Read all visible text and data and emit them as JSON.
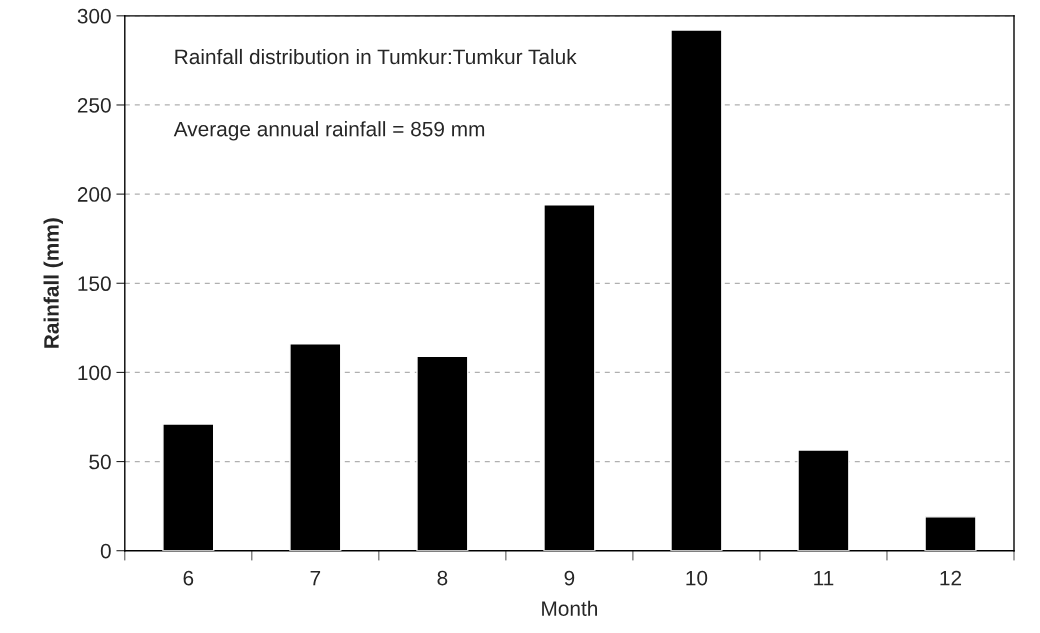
{
  "chart_data": {
    "type": "bar",
    "xlabel": "Month",
    "ylabel": "Rainfall (mm)",
    "categories": [
      "6",
      "7",
      "8",
      "9",
      "10",
      "11",
      "12"
    ],
    "values": [
      71,
      116,
      109,
      194,
      292,
      56.5,
      19
    ],
    "color": "#000000",
    "ylim": [
      0,
      300
    ],
    "yticks": [
      0,
      50,
      100,
      150,
      200,
      250,
      300
    ],
    "grid": "y",
    "annotations": [
      "Rainfall distribution in Tumkur:Tumkur Taluk",
      "Average annual rainfall = 859 mm"
    ]
  }
}
